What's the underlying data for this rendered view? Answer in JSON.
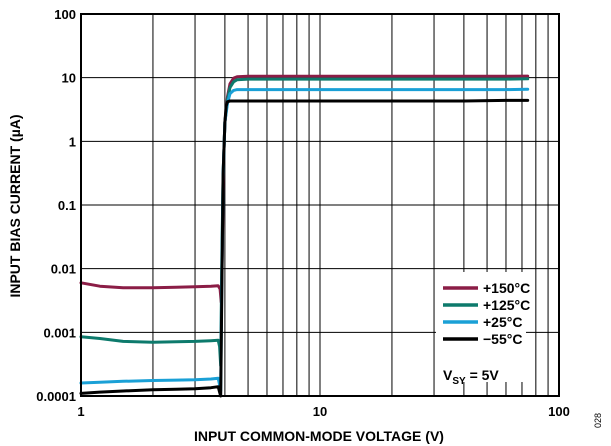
{
  "chart_data": {
    "type": "line",
    "title": "",
    "xlabel": "INPUT COMMON-MODE VOLTAGE (V)",
    "ylabel": "INPUT BIAS CURRENT (µA)",
    "xscale": "log",
    "yscale": "log",
    "xlim": [
      1,
      100
    ],
    "ylim": [
      0.0001,
      100
    ],
    "x_ticks": [
      "1",
      "10",
      "100"
    ],
    "y_ticks": [
      "0.0001",
      "0.001",
      "0.01",
      "0.1",
      "1",
      "10",
      "100"
    ],
    "grid": true,
    "legend_position": "bottom-right",
    "legend_note": {
      "main": "V",
      "sub": "SY",
      "rest": " = 5V"
    },
    "figure_id": "028",
    "series": [
      {
        "name": "+150°C",
        "color": "#8b1d46",
        "x": [
          1.0,
          1.2,
          1.5,
          2.0,
          2.5,
          3.0,
          3.5,
          3.75,
          3.82,
          3.86,
          3.9,
          3.95,
          4.0,
          4.1,
          4.2,
          4.35,
          4.5,
          5.0,
          7.0,
          10.0,
          20.0,
          40.0,
          60.0,
          74.0
        ],
        "y": [
          0.006,
          0.0053,
          0.005,
          0.005,
          0.0051,
          0.0052,
          0.0053,
          0.0054,
          0.0048,
          0.003,
          0.02,
          0.5,
          2.0,
          5.0,
          8.0,
          9.8,
          10.3,
          10.5,
          10.5,
          10.5,
          10.5,
          10.5,
          10.5,
          10.6
        ]
      },
      {
        "name": "+125°C",
        "color": "#0d7a6c",
        "x": [
          1.0,
          1.2,
          1.5,
          2.0,
          2.5,
          3.0,
          3.5,
          3.75,
          3.8,
          3.84,
          3.88,
          3.93,
          4.0,
          4.1,
          4.2,
          4.35,
          4.5,
          5.0,
          7.0,
          10.0,
          20.0,
          40.0,
          60.0,
          74.0
        ],
        "y": [
          0.00085,
          0.0008,
          0.00072,
          0.0007,
          0.00071,
          0.00072,
          0.00074,
          0.00075,
          0.0006,
          0.0003,
          0.01,
          0.3,
          2.0,
          4.5,
          7.0,
          8.6,
          9.3,
          9.5,
          9.5,
          9.5,
          9.5,
          9.5,
          9.5,
          9.6
        ]
      },
      {
        "name": "+25°C",
        "color": "#1aa0d6",
        "x": [
          1.0,
          1.2,
          1.5,
          2.0,
          2.5,
          3.0,
          3.5,
          3.75,
          3.8,
          3.84,
          3.88,
          3.93,
          4.0,
          4.1,
          4.2,
          4.35,
          4.5,
          5.0,
          7.0,
          10.0,
          20.0,
          40.0,
          60.0,
          74.0
        ],
        "y": [
          0.00016,
          0.000165,
          0.00017,
          0.000175,
          0.000178,
          0.00018,
          0.000185,
          0.00019,
          0.00015,
          0.00012,
          0.005,
          0.3,
          2.0,
          4.0,
          5.6,
          6.3,
          6.5,
          6.5,
          6.5,
          6.5,
          6.5,
          6.5,
          6.5,
          6.6
        ]
      },
      {
        "name": "−55°C",
        "color": "#000000",
        "x": [
          1.0,
          1.2,
          1.5,
          2.0,
          2.5,
          3.0,
          3.5,
          3.75,
          3.8,
          3.84,
          3.88,
          3.93,
          4.0,
          4.05,
          4.1,
          4.2,
          4.5,
          5.0,
          7.0,
          10.0,
          20.0,
          40.0,
          60.0,
          74.0
        ],
        "y": [
          0.00011,
          0.000115,
          0.00012,
          0.000125,
          0.000128,
          0.00013,
          0.000135,
          0.00014,
          0.000115,
          0.0001,
          0.003,
          0.3,
          2.0,
          3.6,
          4.2,
          4.3,
          4.3,
          4.3,
          4.3,
          4.3,
          4.3,
          4.3,
          4.4,
          4.4
        ]
      }
    ]
  }
}
